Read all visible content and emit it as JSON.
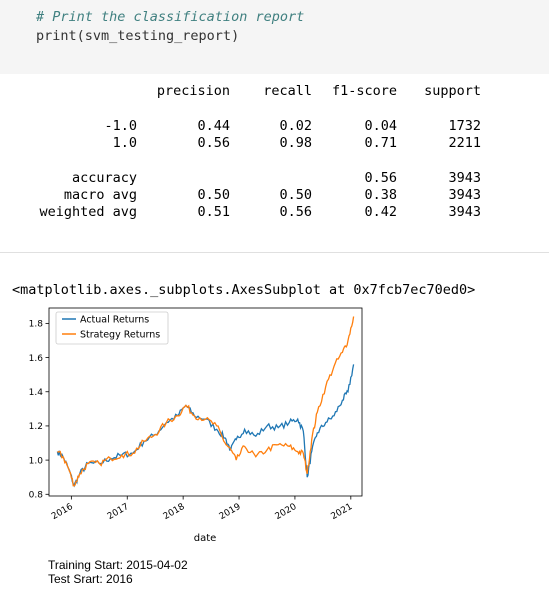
{
  "code": {
    "comment": "# Print the classification report",
    "line": "print(svm_testing_report)"
  },
  "report": {
    "headers": [
      "precision",
      "recall",
      "f1-score",
      "support"
    ],
    "rows": [
      {
        "label": "-1.0",
        "precision": "0.44",
        "recall": "0.02",
        "f1": "0.04",
        "support": "1732"
      },
      {
        "label": "1.0",
        "precision": "0.56",
        "recall": "0.98",
        "f1": "0.71",
        "support": "2211"
      },
      {
        "label": "accuracy",
        "precision": "",
        "recall": "",
        "f1": "0.56",
        "support": "3943"
      },
      {
        "label": "macro avg",
        "precision": "0.50",
        "recall": "0.50",
        "f1": "0.38",
        "support": "3943"
      },
      {
        "label": "weighted avg",
        "precision": "0.51",
        "recall": "0.56",
        "f1": "0.42",
        "support": "3943"
      }
    ]
  },
  "repr": "<matplotlib.axes._subplots.AxesSubplot at 0x7fcb7ec70ed0>",
  "chart_data": {
    "type": "line",
    "xlabel": "date",
    "ylabel": "",
    "title": "",
    "x_ticks": [
      "2016",
      "2017",
      "2018",
      "2019",
      "2020",
      "2021"
    ],
    "y_ticks": [
      "0.8",
      "1.0",
      "1.2",
      "1.4",
      "1.6",
      "1.8"
    ],
    "ylim": [
      0.79,
      1.89
    ],
    "xlim": [
      2015.6,
      2021.2
    ],
    "legend": "top-left",
    "grid": false,
    "series": [
      {
        "name": "Actual Returns",
        "color": "#1f77b4",
        "x": [
          2015.75,
          2015.85,
          2015.95,
          2016.05,
          2016.15,
          2016.3,
          2016.5,
          2016.7,
          2016.9,
          2017.1,
          2017.3,
          2017.5,
          2017.7,
          2017.9,
          2018.05,
          2018.2,
          2018.4,
          2018.6,
          2018.75,
          2018.85,
          2018.95,
          2019.1,
          2019.3,
          2019.5,
          2019.7,
          2019.9,
          2020.05,
          2020.15,
          2020.22,
          2020.3,
          2020.4,
          2020.55,
          2020.7,
          2020.85,
          2020.95,
          2021.05
        ],
        "values": [
          1.05,
          1.02,
          0.95,
          0.85,
          0.92,
          0.98,
          0.98,
          1.01,
          1.03,
          1.04,
          1.11,
          1.15,
          1.22,
          1.26,
          1.32,
          1.26,
          1.24,
          1.18,
          1.13,
          1.06,
          1.12,
          1.18,
          1.14,
          1.2,
          1.19,
          1.22,
          1.24,
          1.17,
          0.9,
          1.05,
          1.16,
          1.22,
          1.26,
          1.35,
          1.4,
          1.56
        ]
      },
      {
        "name": "Strategy Returns",
        "color": "#ff7f0e",
        "x": [
          2015.75,
          2015.85,
          2015.95,
          2016.05,
          2016.15,
          2016.3,
          2016.5,
          2016.7,
          2016.9,
          2017.1,
          2017.3,
          2017.5,
          2017.7,
          2017.9,
          2018.05,
          2018.2,
          2018.4,
          2018.6,
          2018.75,
          2018.85,
          2018.95,
          2019.1,
          2019.3,
          2019.5,
          2019.7,
          2019.9,
          2020.05,
          2020.15,
          2020.22,
          2020.3,
          2020.4,
          2020.55,
          2020.7,
          2020.85,
          2020.95,
          2021.05
        ],
        "values": [
          1.05,
          1.02,
          0.95,
          0.85,
          0.92,
          0.98,
          0.98,
          1.01,
          1.03,
          1.04,
          1.11,
          1.15,
          1.22,
          1.26,
          1.32,
          1.26,
          1.24,
          1.2,
          1.1,
          1.06,
          1.0,
          1.08,
          1.02,
          1.06,
          1.09,
          1.08,
          1.05,
          1.04,
          0.92,
          1.12,
          1.28,
          1.43,
          1.55,
          1.63,
          1.7,
          1.84
        ]
      }
    ]
  },
  "footer": {
    "training": "Training Start: 2015-04-02",
    "test": "Test Srart: 2016"
  }
}
